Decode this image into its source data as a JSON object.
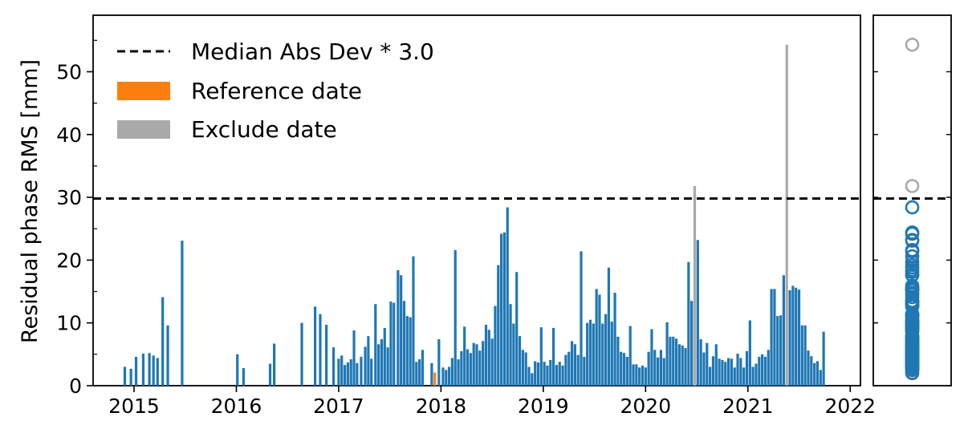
{
  "chart_data": {
    "type": "bar",
    "ylabel": "Residual phase RMS [mm]",
    "xlabel": "",
    "ylim": [
      0,
      59
    ],
    "yticks": [
      0,
      10,
      20,
      30,
      40,
      50
    ],
    "xlim": [
      2014.6,
      2022.1
    ],
    "xticks": [
      "2015",
      "2016",
      "2017",
      "2018",
      "2019",
      "2020",
      "2021",
      "2022"
    ],
    "threshold": 29.8,
    "legend_position": "top-left",
    "colors": {
      "normal": "#1f77b4",
      "reference": "#ff7f0e",
      "exclude": "#a9a9a9",
      "threshold": "#000000"
    },
    "legend": [
      {
        "label": "Median Abs Dev * 3.0",
        "style": "dashed"
      },
      {
        "label": "Reference date",
        "style": "patch-reference"
      },
      {
        "label": "Exclude date",
        "style": "patch-exclude"
      }
    ],
    "bars": [
      [
        2014.91,
        3.0
      ],
      [
        2014.97,
        2.7
      ],
      [
        2015.02,
        4.6
      ],
      [
        2015.09,
        5.1
      ],
      [
        2015.15,
        5.2
      ],
      [
        2015.19,
        4.8
      ],
      [
        2015.23,
        4.4
      ],
      [
        2015.28,
        14.1
      ],
      [
        2015.33,
        9.6
      ],
      [
        2015.47,
        23.1
      ],
      [
        2016.01,
        5.0
      ],
      [
        2016.07,
        2.8
      ],
      [
        2016.33,
        3.5
      ],
      [
        2016.37,
        6.7
      ],
      [
        2016.64,
        10.0
      ],
      [
        2016.77,
        12.6
      ],
      [
        2016.82,
        11.4
      ],
      [
        2016.88,
        9.7
      ],
      [
        2016.95,
        6.1
      ],
      [
        2017.0,
        4.3
      ],
      [
        2017.03,
        4.8
      ],
      [
        2017.06,
        3.3
      ],
      [
        2017.09,
        3.7
      ],
      [
        2017.12,
        4.2
      ],
      [
        2017.15,
        8.8
      ],
      [
        2017.18,
        3.6
      ],
      [
        2017.22,
        4.6
      ],
      [
        2017.26,
        6.2
      ],
      [
        2017.29,
        7.9
      ],
      [
        2017.32,
        4.3
      ],
      [
        2017.36,
        13.0
      ],
      [
        2017.39,
        6.6
      ],
      [
        2017.42,
        7.4
      ],
      [
        2017.45,
        9.2
      ],
      [
        2017.48,
        6.1
      ],
      [
        2017.51,
        13.4
      ],
      [
        2017.54,
        13.2
      ],
      [
        2017.58,
        18.4
      ],
      [
        2017.61,
        17.6
      ],
      [
        2017.64,
        13.5
      ],
      [
        2017.67,
        11.1
      ],
      [
        2017.7,
        10.9
      ],
      [
        2017.73,
        20.6
      ],
      [
        2017.76,
        3.8
      ],
      [
        2017.79,
        4.2
      ],
      [
        2017.82,
        5.7
      ],
      [
        2017.91,
        3.6
      ],
      [
        2017.94,
        2.1,
        "reference"
      ],
      [
        2017.98,
        7.4
      ],
      [
        2018.02,
        2.9
      ],
      [
        2018.05,
        2.5
      ],
      [
        2018.08,
        3.0
      ],
      [
        2018.11,
        4.4
      ],
      [
        2018.14,
        21.6
      ],
      [
        2018.17,
        4.2
      ],
      [
        2018.2,
        5.5
      ],
      [
        2018.23,
        9.4
      ],
      [
        2018.26,
        5.8
      ],
      [
        2018.29,
        5.2
      ],
      [
        2018.32,
        6.8
      ],
      [
        2018.35,
        6.6
      ],
      [
        2018.38,
        5.6
      ],
      [
        2018.41,
        7.1
      ],
      [
        2018.44,
        9.7
      ],
      [
        2018.47,
        8.9
      ],
      [
        2018.5,
        7.5
      ],
      [
        2018.53,
        12.7
      ],
      [
        2018.56,
        19.2
      ],
      [
        2018.59,
        24.2
      ],
      [
        2018.62,
        24.4
      ],
      [
        2018.65,
        28.4
      ],
      [
        2018.68,
        13.0
      ],
      [
        2018.71,
        9.9
      ],
      [
        2018.74,
        18.1
      ],
      [
        2018.77,
        7.9
      ],
      [
        2018.8,
        5.7
      ],
      [
        2018.83,
        5.3
      ],
      [
        2018.86,
        3.0
      ],
      [
        2018.89,
        2.0
      ],
      [
        2018.92,
        3.9
      ],
      [
        2018.95,
        3.7
      ],
      [
        2018.98,
        9.3
      ],
      [
        2019.01,
        3.8
      ],
      [
        2019.04,
        3.2
      ],
      [
        2019.07,
        4.1
      ],
      [
        2019.1,
        9.2
      ],
      [
        2019.13,
        3.3
      ],
      [
        2019.16,
        3.8
      ],
      [
        2019.19,
        3.2
      ],
      [
        2019.22,
        4.9
      ],
      [
        2019.25,
        5.4
      ],
      [
        2019.28,
        7.1
      ],
      [
        2019.31,
        6.6
      ],
      [
        2019.34,
        4.9
      ],
      [
        2019.37,
        21.4
      ],
      [
        2019.4,
        4.6
      ],
      [
        2019.43,
        10.0
      ],
      [
        2019.46,
        10.5
      ],
      [
        2019.49,
        9.9
      ],
      [
        2019.52,
        15.4
      ],
      [
        2019.55,
        14.5
      ],
      [
        2019.58,
        9.9
      ],
      [
        2019.61,
        11.4
      ],
      [
        2019.64,
        18.8
      ],
      [
        2019.67,
        10.2
      ],
      [
        2019.7,
        14.8
      ],
      [
        2019.73,
        7.8
      ],
      [
        2019.76,
        5.4
      ],
      [
        2019.79,
        5.2
      ],
      [
        2019.82,
        4.6
      ],
      [
        2019.85,
        9.5
      ],
      [
        2019.88,
        3.4
      ],
      [
        2019.91,
        3.4
      ],
      [
        2019.94,
        2.9
      ],
      [
        2019.97,
        3.2
      ],
      [
        2020.0,
        2.9
      ],
      [
        2020.03,
        5.4
      ],
      [
        2020.06,
        9.0
      ],
      [
        2020.09,
        5.7
      ],
      [
        2020.12,
        4.5
      ],
      [
        2020.15,
        5.7
      ],
      [
        2020.18,
        4.4
      ],
      [
        2020.21,
        10.1
      ],
      [
        2020.24,
        7.8
      ],
      [
        2020.27,
        7.8
      ],
      [
        2020.3,
        7.5
      ],
      [
        2020.33,
        6.6
      ],
      [
        2020.36,
        6.4
      ],
      [
        2020.39,
        6.0
      ],
      [
        2020.42,
        19.7
      ],
      [
        2020.45,
        13.5
      ],
      [
        2020.48,
        31.8,
        "exclude"
      ],
      [
        2020.51,
        23.2
      ],
      [
        2020.54,
        7.4
      ],
      [
        2020.57,
        5.3
      ],
      [
        2020.6,
        6.8
      ],
      [
        2020.63,
        3.0
      ],
      [
        2020.66,
        4.7
      ],
      [
        2020.69,
        6.6
      ],
      [
        2020.72,
        4.3
      ],
      [
        2020.75,
        4.1
      ],
      [
        2020.78,
        3.8
      ],
      [
        2020.81,
        4.4
      ],
      [
        2020.84,
        4.3
      ],
      [
        2020.87,
        2.9
      ],
      [
        2020.9,
        5.1
      ],
      [
        2020.93,
        4.4
      ],
      [
        2020.96,
        2.9
      ],
      [
        2020.99,
        5.5
      ],
      [
        2021.02,
        10.4
      ],
      [
        2021.05,
        3.0
      ],
      [
        2021.08,
        3.5
      ],
      [
        2021.11,
        4.6
      ],
      [
        2021.14,
        5.0
      ],
      [
        2021.17,
        4.6
      ],
      [
        2021.2,
        5.7
      ],
      [
        2021.23,
        15.4
      ],
      [
        2021.26,
        15.4
      ],
      [
        2021.29,
        11.1
      ],
      [
        2021.32,
        11.2
      ],
      [
        2021.35,
        17.6
      ],
      [
        2021.38,
        54.3,
        "exclude"
      ],
      [
        2021.41,
        15.2
      ],
      [
        2021.44,
        15.9
      ],
      [
        2021.47,
        15.6
      ],
      [
        2021.5,
        15.3
      ],
      [
        2021.53,
        9.6
      ],
      [
        2021.56,
        9.6
      ],
      [
        2021.59,
        5.6
      ],
      [
        2021.62,
        4.7
      ],
      [
        2021.65,
        3.6
      ],
      [
        2021.68,
        3.9
      ],
      [
        2021.71,
        2.5
      ],
      [
        2021.74,
        8.6
      ]
    ]
  }
}
